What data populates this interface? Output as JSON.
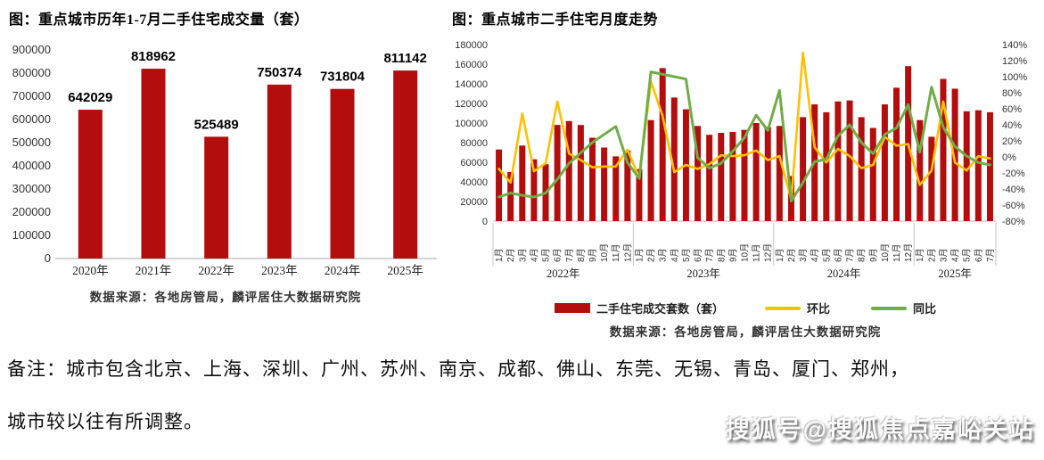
{
  "colors": {
    "bar_red": "#B30D0D",
    "line_yellow": "#FFC000",
    "line_green": "#70AD47",
    "axis_text": "#333333",
    "axis_line": "#C6C6C6"
  },
  "left_chart": {
    "title": "图：重点城市历年1-7月二手住宅成交量（套）",
    "source": "数据来源：各地房管局，麟评居住大数据研究院",
    "chart_data": {
      "type": "bar",
      "categories": [
        "2020年",
        "2021年",
        "2022年",
        "2023年",
        "2024年",
        "2025年"
      ],
      "values": [
        642029,
        818962,
        525489,
        750374,
        731804,
        811142
      ],
      "data_labels": [
        "642029",
        "818962",
        "525489",
        "750374",
        "731804",
        "811142"
      ],
      "ylim": [
        0,
        900000
      ],
      "ytick_step": 100000,
      "grid": false,
      "legend_position": "none"
    }
  },
  "right_chart": {
    "title": "图：重点城市二手住宅月度走势",
    "source": "数据来源：各地房管局，麟评居住大数据研究院",
    "legend": [
      "二手住宅成交套数（套）",
      "环比",
      "同比"
    ],
    "chart_data": {
      "type": "combo-bar-line",
      "month_suffix": "月",
      "groups": [
        {
          "year": "2022年",
          "months": 12
        },
        {
          "year": "2023年",
          "months": 12
        },
        {
          "year": "2024年",
          "months": 12
        },
        {
          "year": "2025年",
          "months": 7
        }
      ],
      "bars": {
        "name": "二手住宅成交套数（套）",
        "axis": "left",
        "values": [
          73000,
          50000,
          77000,
          63000,
          58000,
          98000,
          102000,
          98000,
          85000,
          75000,
          66000,
          72000,
          53000,
          103000,
          156000,
          126000,
          114000,
          97000,
          88000,
          90000,
          91000,
          93000,
          100000,
          96000,
          97000,
          46000,
          106000,
          119000,
          111000,
          122000,
          123000,
          106000,
          95000,
          119000,
          136000,
          158000,
          103000,
          86000,
          145000,
          135000,
          112000,
          113000,
          111000
        ]
      },
      "lines": [
        {
          "name": "环比",
          "axis": "right",
          "values_pct": [
            -15,
            -32,
            54,
            -18,
            -8,
            69,
            4,
            -4,
            -13,
            -12,
            -12,
            9,
            -26,
            94,
            51,
            -19,
            -10,
            -15,
            -9,
            2,
            1,
            2,
            8,
            -4,
            1,
            -53,
            130,
            12,
            -7,
            10,
            1,
            -14,
            -10,
            25,
            14,
            16,
            -35,
            -17,
            69,
            -7,
            -17,
            1,
            -2
          ]
        },
        {
          "name": "同比",
          "axis": "right",
          "values_pct": [
            -50,
            -45,
            -48,
            -50,
            -45,
            -28,
            -8,
            5,
            18,
            28,
            38,
            -7,
            -27,
            106,
            103,
            100,
            97,
            -1,
            -14,
            -8,
            7,
            24,
            52,
            33,
            83,
            -55,
            -32,
            -6,
            -3,
            26,
            40,
            18,
            4,
            28,
            36,
            65,
            6,
            87,
            37,
            13,
            1,
            -7,
            -10
          ]
        }
      ],
      "left_axis": {
        "min": 0,
        "max": 180000,
        "step": 20000
      },
      "right_axis": {
        "min": -80,
        "max": 140,
        "step": 20,
        "suffix": "%"
      },
      "grid": false,
      "legend_position": "bottom"
    }
  },
  "note": {
    "line1": "备注：城市包含北京、上海、深圳、广州、苏州、南京、成都、佛山、东莞、无锡、青岛、厦门、郑州，",
    "line2": "城市较以往有所调整。"
  },
  "watermark": {
    "text": "搜狐号@搜狐焦点嘉峪关站"
  }
}
